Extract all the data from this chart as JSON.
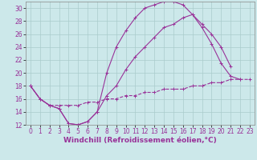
{
  "xlabel": "Windchill (Refroidissement éolien,°C)",
  "background_color": "#cce8ea",
  "grid_color": "#aacccc",
  "line_color": "#993399",
  "xlim": [
    -0.5,
    23.5
  ],
  "ylim": [
    12,
    31
  ],
  "yticks": [
    12,
    14,
    16,
    18,
    20,
    22,
    24,
    26,
    28,
    30
  ],
  "xticks": [
    0,
    1,
    2,
    3,
    4,
    5,
    6,
    7,
    8,
    9,
    10,
    11,
    12,
    13,
    14,
    15,
    16,
    17,
    18,
    19,
    20,
    21,
    22,
    23
  ],
  "line1_x": [
    0,
    1,
    2,
    3,
    4,
    5,
    6,
    7,
    8,
    9,
    10,
    11,
    12,
    13,
    14,
    15,
    16,
    17,
    18,
    19,
    20,
    21,
    22
  ],
  "line1_y": [
    18,
    16,
    15,
    14.5,
    12.2,
    12.0,
    12.5,
    14.0,
    20.0,
    24.0,
    26.5,
    28.5,
    30.0,
    30.5,
    31.0,
    31.0,
    30.5,
    29.0,
    27.0,
    24.5,
    21.5,
    19.5,
    19.0
  ],
  "line2_x": [
    0,
    1,
    2,
    3,
    4,
    5,
    6,
    7,
    8,
    9,
    10,
    11,
    12,
    13,
    14,
    15,
    16,
    17,
    18,
    19,
    20,
    21
  ],
  "line2_y": [
    18,
    16,
    15,
    14.5,
    12.2,
    12.0,
    12.5,
    14.0,
    16.5,
    18.0,
    20.5,
    22.5,
    24.0,
    25.5,
    27.0,
    27.5,
    28.5,
    29.0,
    27.5,
    26.0,
    24.0,
    21.0
  ],
  "line3_x": [
    0,
    1,
    2,
    3,
    4,
    5,
    6,
    7,
    8,
    9,
    10,
    11,
    12,
    13,
    14,
    15,
    16,
    17,
    18,
    19,
    20,
    21,
    22,
    23
  ],
  "line3_y": [
    18,
    16,
    15.0,
    15.0,
    15.0,
    15.0,
    15.5,
    15.5,
    16.0,
    16.0,
    16.5,
    16.5,
    17.0,
    17.0,
    17.5,
    17.5,
    17.5,
    18.0,
    18.0,
    18.5,
    18.5,
    19.0,
    19.0,
    19.0
  ],
  "xlabel_fontsize": 6.5,
  "tick_fontsize": 5.5
}
